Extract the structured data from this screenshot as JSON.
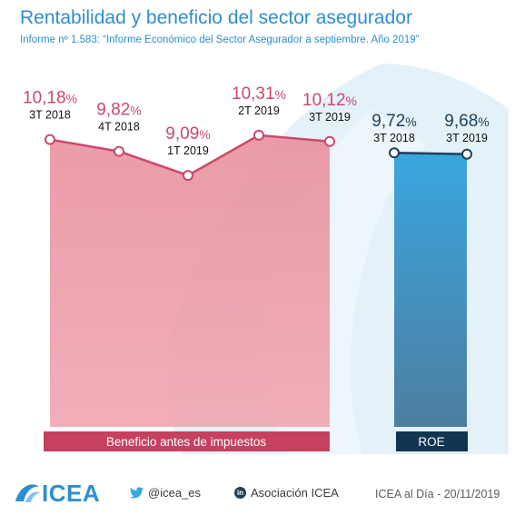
{
  "header": {
    "title": "Rentabilidad y beneficio del sector asegurador",
    "subtitle": "Informe nº 1.583: “Informe Económico del Sector Asegurador a septiembre. Año 2019”"
  },
  "colors": {
    "title": "#2c8fcf",
    "benefit_line": "#c94a6c",
    "benefit_area_top": "#e9909f",
    "benefit_area_bottom": "#f0a6b1",
    "benefit_label_bg": "#c6405f",
    "roe_line": "#1e3f5a",
    "roe_bar_top": "#3aa6df",
    "roe_bar_bottom": "#4d7ea0",
    "roe_label_bg": "#0f3552"
  },
  "chart_data": [
    {
      "type": "area",
      "name": "Beneficio antes de impuestos",
      "categories": [
        "3T 2018",
        "4T 2018",
        "1T 2019",
        "2T 2019",
        "3T 2019"
      ],
      "values": [
        10.18,
        9.82,
        9.09,
        10.31,
        10.12
      ],
      "value_labels": [
        "10,18",
        "9,82",
        "9,09",
        "10,31",
        "10,12"
      ],
      "unit": "%",
      "label": "Beneficio antes de impuestos"
    },
    {
      "type": "bar",
      "name": "ROE",
      "categories": [
        "3T 2018",
        "3T 2019"
      ],
      "values": [
        9.72,
        9.68
      ],
      "value_labels": [
        "9,72",
        "9,68"
      ],
      "unit": "%",
      "label": "ROE"
    }
  ],
  "footer": {
    "logo_text": "ICEA",
    "logo_icon": "icea-wave-logo",
    "twitter_icon": "twitter-bird-icon",
    "twitter_handle": "@icea_es",
    "linkedin_icon": "linkedin-icon",
    "linkedin_badge": "in",
    "linkedin_label": "Asociación ICEA",
    "date": "ICEA al Día - 20/11/2019"
  }
}
